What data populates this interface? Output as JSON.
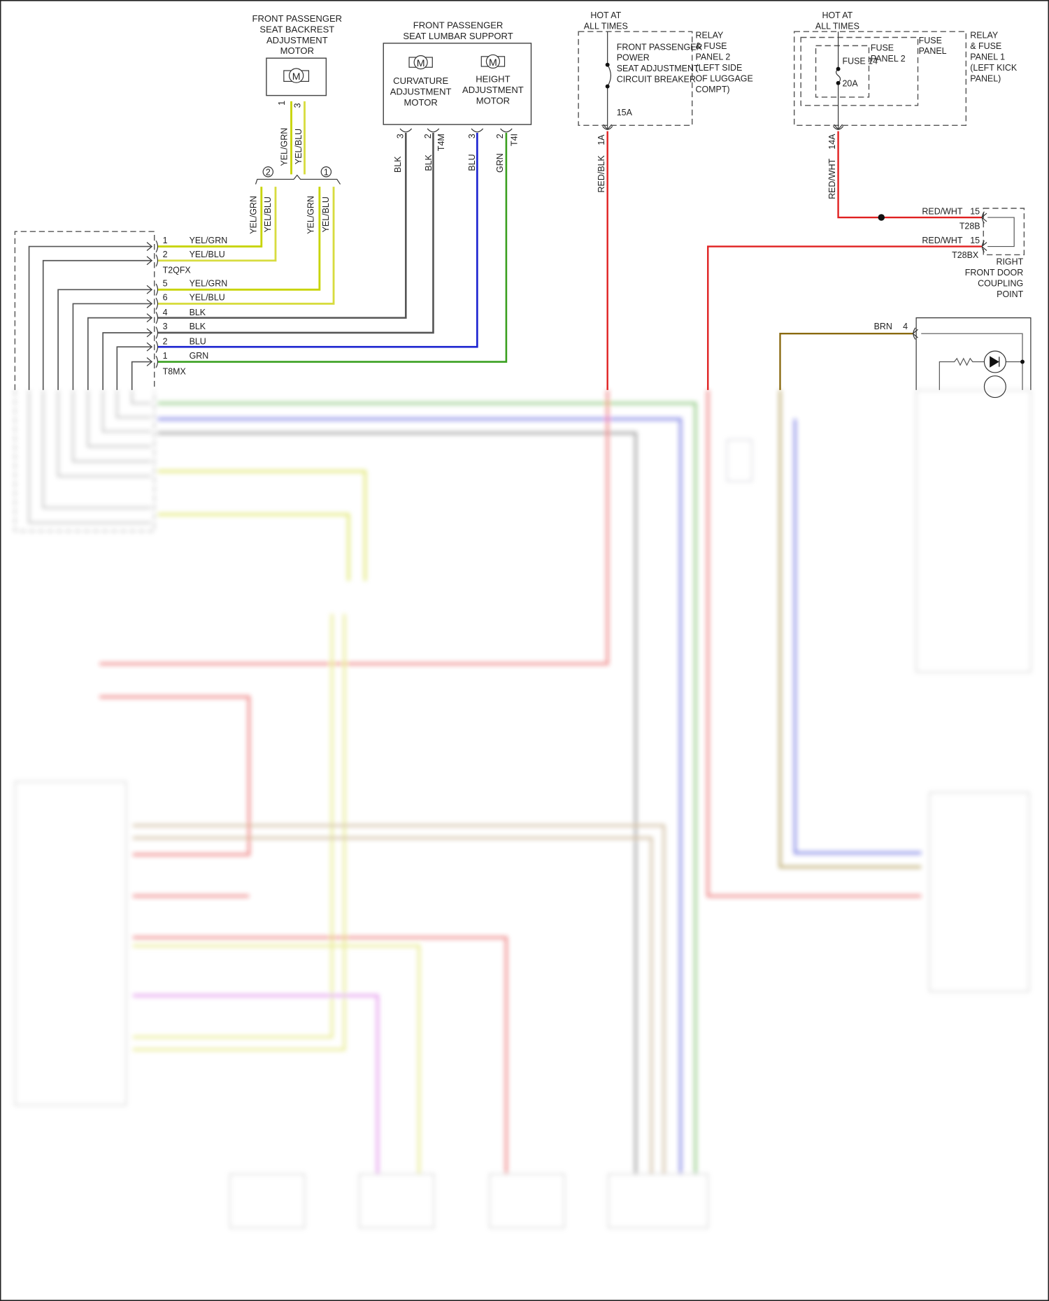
{
  "diagram": {
    "backrest_motor": {
      "title": [
        "FRONT PASSENGER",
        "SEAT BACKREST",
        "ADJUSTMENT",
        "MOTOR"
      ],
      "motor_symbol": "M",
      "pins": [
        "1",
        "3"
      ],
      "wires": [
        "YEL/GRN",
        "YEL/BLU"
      ]
    },
    "splice_refs": [
      "2",
      "1"
    ],
    "splice_wires": [
      "YEL/GRN",
      "YEL/BLU",
      "YEL/GRN",
      "YEL/BLU"
    ],
    "lumbar": {
      "title": [
        "FRONT PASSENGER",
        "SEAT LUMBAR SUPPORT"
      ],
      "curvature_motor": [
        "CURVATURE",
        "ADJUSTMENT",
        "MOTOR"
      ],
      "height_motor": [
        "HEIGHT",
        "ADJUSTMENT",
        "MOTOR"
      ],
      "motor_symbol": "M",
      "pins": [
        "3",
        "2",
        "3",
        "2"
      ],
      "connectors": [
        "T4M",
        "T4I"
      ],
      "wires": [
        "BLK",
        "BLK",
        "BLU",
        "GRN"
      ]
    },
    "connector_rows": [
      {
        "pin": "1",
        "wire": "YEL/GRN",
        "color": "#c8d400"
      },
      {
        "pin": "2",
        "wire": "YEL/BLU",
        "color": "#d8dc40"
      },
      {
        "pin": "5",
        "wire": "YEL/GRN",
        "color": "#c8d400"
      },
      {
        "pin": "6",
        "wire": "YEL/BLU",
        "color": "#d8dc40"
      },
      {
        "pin": "4",
        "wire": "BLK",
        "color": "#555555"
      },
      {
        "pin": "3",
        "wire": "BLK",
        "color": "#555555"
      },
      {
        "pin": "2",
        "wire": "BLU",
        "color": "#1a22d0"
      },
      {
        "pin": "1",
        "wire": "GRN",
        "color": "#3aa020"
      }
    ],
    "connector_ids": [
      "T2QFX",
      "T8MX"
    ],
    "breaker_panel": {
      "hot": [
        "HOT AT",
        "ALL TIMES"
      ],
      "device": [
        "FRONT PASSENGER",
        "POWER",
        "SEAT ADJUSTMENT",
        "CIRCUIT BREAKER"
      ],
      "rating": "15A",
      "panel": [
        "RELAY",
        "& FUSE",
        "PANEL 2",
        "(LEFT SIDE",
        "OF LUGGAGE",
        "COMPT)"
      ],
      "terminal": "1A",
      "wire": "RED/BLK"
    },
    "fuse_panel": {
      "hot": [
        "HOT AT",
        "ALL TIMES"
      ],
      "fuse": "FUSE 14",
      "rating": "20A",
      "inner_panel": [
        "FUSE",
        "PANEL 2"
      ],
      "mid_panel": [
        "FUSE",
        "PANEL"
      ],
      "outer_panel": [
        "RELAY",
        "& FUSE",
        "PANEL 1",
        "(LEFT KICK",
        "PANEL)"
      ],
      "terminal": "14A",
      "wire": "RED/WHT"
    },
    "door_coupling": {
      "rows": [
        {
          "wire": "RED/WHT",
          "pin": "15",
          "connector": "T28B"
        },
        {
          "wire": "RED/WHT",
          "pin": "15",
          "connector": "T28BX"
        }
      ],
      "label": [
        "RIGHT",
        "FRONT DOOR",
        "COUPLING",
        "POINT"
      ]
    },
    "switch_input": {
      "wire": "BRN",
      "pin": "4"
    },
    "colors": {
      "red": "#e02020",
      "yellow": "#c8d400",
      "blue": "#1a22d0",
      "green": "#3aa020",
      "brown": "#8a6a10",
      "gray": "#555555",
      "magenta": "#d050e0"
    }
  }
}
